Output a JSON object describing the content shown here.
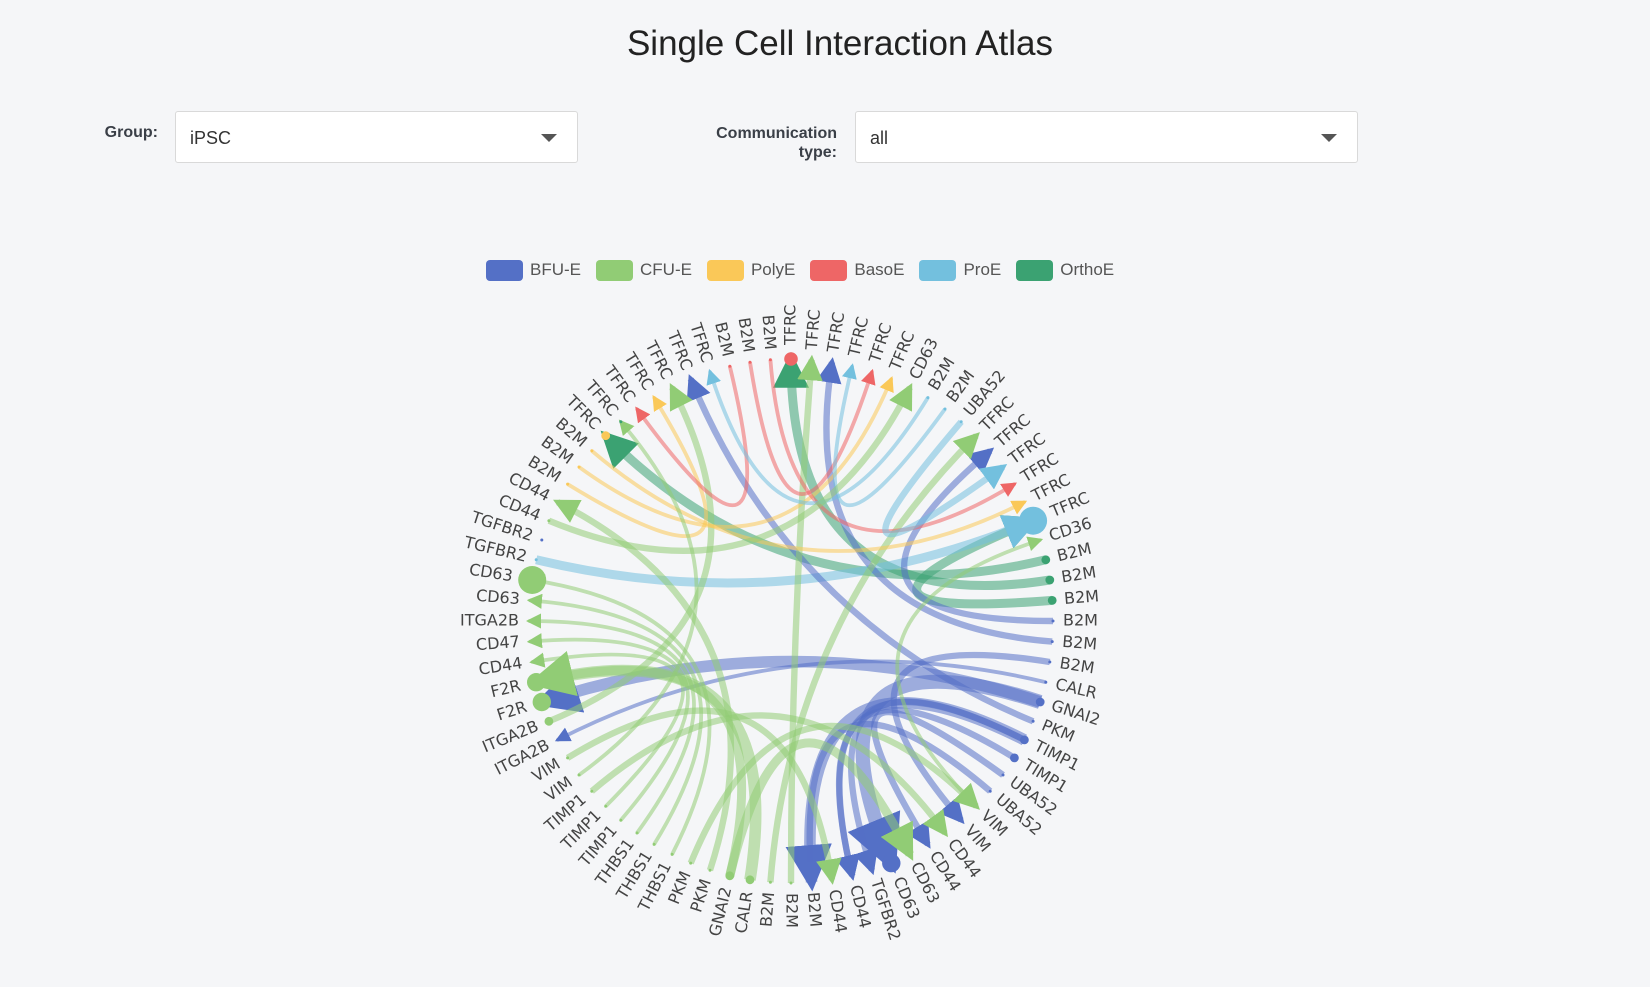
{
  "page": {
    "title": "Single Cell Interaction Atlas"
  },
  "filters": {
    "group_label": "Group:",
    "group_value": "iPSC",
    "comm_label_line1": "Communication",
    "comm_label_line2": "type:",
    "comm_value": "all"
  },
  "legend": [
    {
      "name": "BFU-E",
      "color": "#5470c6"
    },
    {
      "name": "CFU-E",
      "color": "#91cc75"
    },
    {
      "name": "PolyE",
      "color": "#fac858"
    },
    {
      "name": "BasoE",
      "color": "#ee6666"
    },
    {
      "name": "ProE",
      "color": "#73c0de"
    },
    {
      "name": "OrthoE",
      "color": "#3ba272"
    }
  ],
  "chart_data": {
    "type": "chord",
    "cell_types": [
      "BFU-E",
      "CFU-E",
      "PolyE",
      "BasoE",
      "ProE",
      "OrthoE"
    ],
    "nodes": [
      {
        "label": "TFRC",
        "group": "BasoE",
        "size": 2
      },
      {
        "label": "TFRC",
        "group": "CFU-E",
        "size": 0
      },
      {
        "label": "TFRC",
        "group": "BFU-E",
        "size": 0
      },
      {
        "label": "TFRC",
        "group": "ProE",
        "size": 0
      },
      {
        "label": "TFRC",
        "group": "BasoE",
        "size": 0
      },
      {
        "label": "TFRC",
        "group": "PolyE",
        "size": 0
      },
      {
        "label": "CD63",
        "group": "CFU-E",
        "size": 0
      },
      {
        "label": "B2M",
        "group": "ProE",
        "size": 0
      },
      {
        "label": "B2M",
        "group": "ProE",
        "size": 0
      },
      {
        "label": "UBA52",
        "group": "ProE",
        "size": 0
      },
      {
        "label": "TFRC",
        "group": "CFU-E",
        "size": 0
      },
      {
        "label": "TFRC",
        "group": "BFU-E",
        "size": 0
      },
      {
        "label": "TFRC",
        "group": "ProE",
        "size": 0
      },
      {
        "label": "TFRC",
        "group": "BasoE",
        "size": 0
      },
      {
        "label": "TFRC",
        "group": "PolyE",
        "size": 0
      },
      {
        "label": "TFRC",
        "group": "ProE",
        "size": 5
      },
      {
        "label": "CD36",
        "group": "CFU-E",
        "size": 0
      },
      {
        "label": "B2M",
        "group": "OrthoE",
        "size": 1
      },
      {
        "label": "B2M",
        "group": "OrthoE",
        "size": 1
      },
      {
        "label": "B2M",
        "group": "OrthoE",
        "size": 1
      },
      {
        "label": "B2M",
        "group": "BFU-E",
        "size": 0
      },
      {
        "label": "B2M",
        "group": "BFU-E",
        "size": 0
      },
      {
        "label": "B2M",
        "group": "BFU-E",
        "size": 0
      },
      {
        "label": "CALR",
        "group": "BFU-E",
        "size": 0
      },
      {
        "label": "GNAI2",
        "group": "BFU-E",
        "size": 1
      },
      {
        "label": "PKM",
        "group": "BFU-E",
        "size": 0
      },
      {
        "label": "TIMP1",
        "group": "BFU-E",
        "size": 1
      },
      {
        "label": "TIMP1",
        "group": "BFU-E",
        "size": 1
      },
      {
        "label": "UBA52",
        "group": "BFU-E",
        "size": 0
      },
      {
        "label": "UBA52",
        "group": "BFU-E",
        "size": 0
      },
      {
        "label": "VIM",
        "group": "CFU-E",
        "size": 0
      },
      {
        "label": "VIM",
        "group": "BFU-E",
        "size": 0
      },
      {
        "label": "CD44",
        "group": "CFU-E",
        "size": 0
      },
      {
        "label": "CD44",
        "group": "BFU-E",
        "size": 0
      },
      {
        "label": "CD63",
        "group": "CFU-E",
        "size": 0
      },
      {
        "label": "CD63",
        "group": "BFU-E",
        "size": 3
      },
      {
        "label": "TGFBR2",
        "group": "BFU-E",
        "size": 0
      },
      {
        "label": "CD44",
        "group": "BFU-E",
        "size": 0
      },
      {
        "label": "CD44",
        "group": "CFU-E",
        "size": 0
      },
      {
        "label": "B2M",
        "group": "BFU-E",
        "size": 0
      },
      {
        "label": "B2M",
        "group": "CFU-E",
        "size": 0
      },
      {
        "label": "B2M",
        "group": "CFU-E",
        "size": 0
      },
      {
        "label": "CALR",
        "group": "CFU-E",
        "size": 1
      },
      {
        "label": "GNAI2",
        "group": "CFU-E",
        "size": 1
      },
      {
        "label": "PKM",
        "group": "CFU-E",
        "size": 0
      },
      {
        "label": "PKM",
        "group": "CFU-E",
        "size": 0
      },
      {
        "label": "THBS1",
        "group": "CFU-E",
        "size": 0
      },
      {
        "label": "THBS1",
        "group": "CFU-E",
        "size": 0
      },
      {
        "label": "THBS1",
        "group": "CFU-E",
        "size": 0
      },
      {
        "label": "TIMP1",
        "group": "CFU-E",
        "size": 0
      },
      {
        "label": "TIMP1",
        "group": "CFU-E",
        "size": 0
      },
      {
        "label": "TIMP1",
        "group": "CFU-E",
        "size": 0
      },
      {
        "label": "VIM",
        "group": "CFU-E",
        "size": 0
      },
      {
        "label": "VIM",
        "group": "CFU-E",
        "size": 0
      },
      {
        "label": "ITGA2B",
        "group": "BFU-E",
        "size": 0
      },
      {
        "label": "ITGA2B",
        "group": "CFU-E",
        "size": 1
      },
      {
        "label": "F2R",
        "group": "CFU-E",
        "size": 3
      },
      {
        "label": "F2R",
        "group": "CFU-E",
        "size": 3
      },
      {
        "label": "CD44",
        "group": "CFU-E",
        "size": 0
      },
      {
        "label": "CD47",
        "group": "CFU-E",
        "size": 0
      },
      {
        "label": "ITGA2B",
        "group": "CFU-E",
        "size": 0
      },
      {
        "label": "CD63",
        "group": "CFU-E",
        "size": 0
      },
      {
        "label": "CD63",
        "group": "CFU-E",
        "size": 5
      },
      {
        "label": "TGFBR2",
        "group": "ProE",
        "size": 0
      },
      {
        "label": "TGFBR2",
        "group": "BFU-E",
        "size": 0
      },
      {
        "label": "CD44",
        "group": "CFU-E",
        "size": 0
      },
      {
        "label": "CD44",
        "group": "CFU-E",
        "size": 0
      },
      {
        "label": "B2M",
        "group": "PolyE",
        "size": 0
      },
      {
        "label": "B2M",
        "group": "PolyE",
        "size": 0
      },
      {
        "label": "B2M",
        "group": "PolyE",
        "size": 0
      },
      {
        "label": "TFRC",
        "group": "PolyE",
        "size": 1
      },
      {
        "label": "TFRC",
        "group": "OrthoE",
        "size": 0
      },
      {
        "label": "TFRC",
        "group": "BasoE",
        "size": 0
      },
      {
        "label": "TFRC",
        "group": "PolyE",
        "size": 0
      },
      {
        "label": "TFRC",
        "group": "CFU-E",
        "size": 0
      },
      {
        "label": "TFRC",
        "group": "BFU-E",
        "size": 0
      },
      {
        "label": "TFRC",
        "group": "ProE",
        "size": 0
      },
      {
        "label": "B2M",
        "group": "BasoE",
        "size": 0
      },
      {
        "label": "B2M",
        "group": "BasoE",
        "size": 0
      },
      {
        "label": "B2M",
        "group": "BasoE",
        "size": 0
      }
    ],
    "links": [
      {
        "source": 17,
        "target": 70,
        "weight": 3,
        "group": "OrthoE"
      },
      {
        "source": 18,
        "target": 0,
        "weight": 3,
        "group": "OrthoE"
      },
      {
        "source": 19,
        "target": 15,
        "weight": 3,
        "group": "OrthoE"
      },
      {
        "source": 63,
        "target": 15,
        "weight": 3,
        "group": "ProE"
      },
      {
        "source": 24,
        "target": 35,
        "weight": 5,
        "group": "BFU-E"
      },
      {
        "source": 24,
        "target": 56,
        "weight": 4,
        "group": "BFU-E"
      },
      {
        "source": 26,
        "target": 36,
        "weight": 2,
        "group": "BFU-E"
      },
      {
        "source": 27,
        "target": 37,
        "weight": 2,
        "group": "BFU-E"
      },
      {
        "source": 25,
        "target": 75,
        "weight": 2,
        "group": "BFU-E"
      },
      {
        "source": 20,
        "target": 11,
        "weight": 2,
        "group": "BFU-E"
      },
      {
        "source": 21,
        "target": 2,
        "weight": 2,
        "group": "BFU-E"
      },
      {
        "source": 22,
        "target": 31,
        "weight": 2,
        "group": "BFU-E"
      },
      {
        "source": 23,
        "target": 54,
        "weight": 1,
        "group": "BFU-E"
      },
      {
        "source": 26,
        "target": 39,
        "weight": 4,
        "group": "BFU-E"
      },
      {
        "source": 26,
        "target": 37,
        "weight": 2,
        "group": "BFU-E"
      },
      {
        "source": 28,
        "target": 33,
        "weight": 2,
        "group": "BFU-E"
      },
      {
        "source": 29,
        "target": 39,
        "weight": 2,
        "group": "BFU-E"
      },
      {
        "source": 42,
        "target": 57,
        "weight": 4,
        "group": "CFU-E"
      },
      {
        "source": 43,
        "target": 57,
        "weight": 3,
        "group": "CFU-E"
      },
      {
        "source": 43,
        "target": 34,
        "weight": 3,
        "group": "CFU-E"
      },
      {
        "source": 44,
        "target": 66,
        "weight": 2,
        "group": "CFU-E"
      },
      {
        "source": 46,
        "target": 62,
        "weight": 1,
        "group": "CFU-E"
      },
      {
        "source": 47,
        "target": 61,
        "weight": 1,
        "group": "CFU-E"
      },
      {
        "source": 48,
        "target": 60,
        "weight": 1,
        "group": "CFU-E"
      },
      {
        "source": 49,
        "target": 59,
        "weight": 1,
        "group": "CFU-E"
      },
      {
        "source": 50,
        "target": 58,
        "weight": 1,
        "group": "CFU-E"
      },
      {
        "source": 51,
        "target": 32,
        "weight": 2,
        "group": "CFU-E"
      },
      {
        "source": 53,
        "target": 38,
        "weight": 2,
        "group": "CFU-E"
      },
      {
        "source": 40,
        "target": 1,
        "weight": 2,
        "group": "CFU-E"
      },
      {
        "source": 41,
        "target": 10,
        "weight": 2,
        "group": "CFU-E"
      },
      {
        "source": 55,
        "target": 74,
        "weight": 2,
        "group": "CFU-E"
      },
      {
        "source": 45,
        "target": 30,
        "weight": 2,
        "group": "CFU-E"
      },
      {
        "source": 67,
        "target": 73,
        "weight": 1,
        "group": "PolyE"
      },
      {
        "source": 68,
        "target": 5,
        "weight": 1,
        "group": "PolyE"
      },
      {
        "source": 69,
        "target": 14,
        "weight": 1,
        "group": "PolyE"
      },
      {
        "source": 77,
        "target": 72,
        "weight": 1,
        "group": "BasoE"
      },
      {
        "source": 78,
        "target": 4,
        "weight": 1,
        "group": "BasoE"
      },
      {
        "source": 79,
        "target": 13,
        "weight": 1,
        "group": "BasoE"
      },
      {
        "source": 7,
        "target": 76,
        "weight": 1,
        "group": "ProE"
      },
      {
        "source": 8,
        "target": 3,
        "weight": 1,
        "group": "ProE"
      },
      {
        "source": 9,
        "target": 12,
        "weight": 2,
        "group": "ProE"
      },
      {
        "source": 30,
        "target": 16,
        "weight": 1,
        "group": "CFU-E"
      },
      {
        "source": 65,
        "target": 6,
        "weight": 2,
        "group": "CFU-E"
      },
      {
        "source": 52,
        "target": 71,
        "weight": 1,
        "group": "CFU-E"
      }
    ]
  }
}
